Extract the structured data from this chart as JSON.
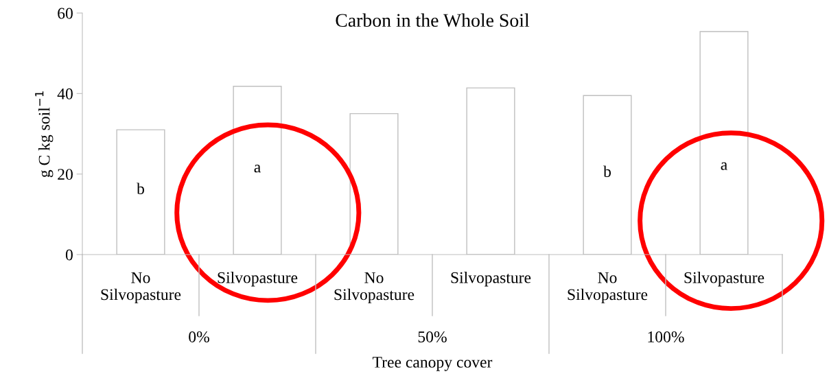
{
  "chart_data": {
    "type": "bar",
    "title": "Carbon in the Whole Soil",
    "xlabel": "Tree canopy cover",
    "ylabel": "g C kg soil$^{−1}$",
    "categories": [
      "No Silvopasture",
      "Silvopasture",
      "No Silvopasture",
      "Silvopasture",
      "No Silvopasture",
      "Silvopasture"
    ],
    "values": [
      31.0,
      41.8,
      35.0,
      41.4,
      39.5,
      55.4
    ],
    "value_labels": [
      "b",
      "a",
      null,
      null,
      "b",
      "a"
    ],
    "color": "#ffffff",
    "annotations": [
      "0%",
      "50%",
      "100%"
    ],
    "ylim": [
      0,
      60
    ],
    "yticks": [
      0,
      20,
      40,
      60
    ],
    "grid": false
  }
}
